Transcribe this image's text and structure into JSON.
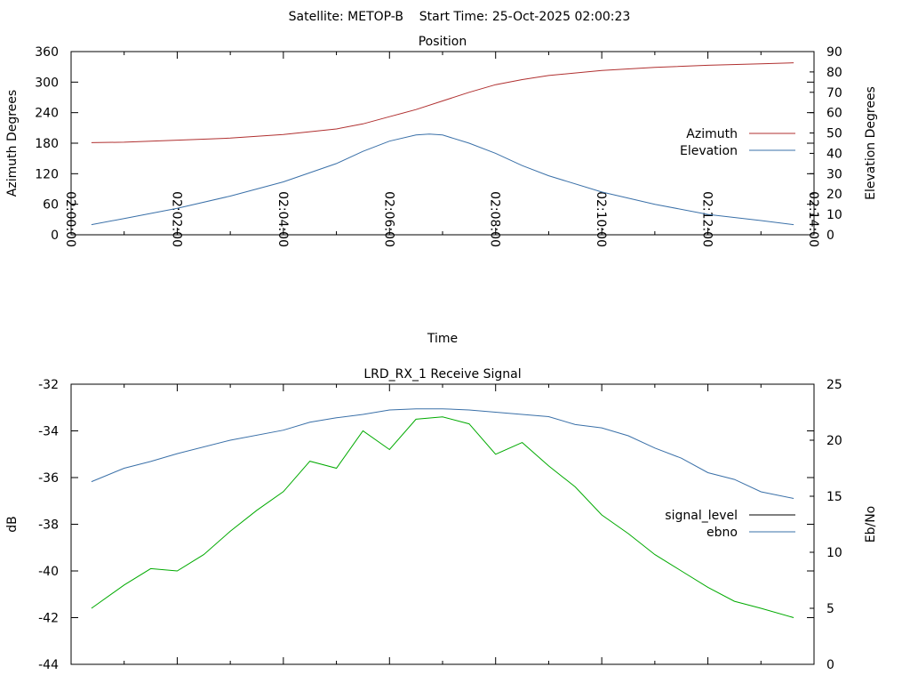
{
  "header": {
    "title": "Satellite: METOP-B    Start Time: 25-Oct-2025 02:00:23"
  },
  "chart_data": [
    {
      "type": "line",
      "title": "Position",
      "xlabel": "Time",
      "ylabel": "Azimuth Degrees",
      "y2label": "Elevation Degrees",
      "xlim": [
        "02:00:00",
        "02:14:00"
      ],
      "xticks": [
        "02:00:00",
        "02:02:00",
        "02:04:00",
        "02:06:00",
        "02:08:00",
        "02:10:00",
        "02:12:00",
        "02:14:00"
      ],
      "ylim": [
        0,
        360
      ],
      "yticks": [
        "0",
        "60",
        "120",
        "180",
        "240",
        "300",
        "360"
      ],
      "y2lim": [
        0,
        90
      ],
      "y2ticks": [
        "0",
        "10",
        "20",
        "30",
        "40",
        "50",
        "60",
        "70",
        "80",
        "90"
      ],
      "grid": false,
      "legend_position": "right",
      "series": [
        {
          "name": "Azimuth",
          "axis": "y",
          "color": "#b03030",
          "x": [
            "02:00:23",
            "02:01:00",
            "02:02:00",
            "02:03:00",
            "02:04:00",
            "02:05:00",
            "02:05:30",
            "02:06:00",
            "02:06:30",
            "02:07:00",
            "02:07:30",
            "02:08:00",
            "02:08:30",
            "02:09:00",
            "02:10:00",
            "02:11:00",
            "02:12:00",
            "02:13:00",
            "02:13:37"
          ],
          "values": [
            181,
            182,
            186,
            190,
            197,
            208,
            218,
            232,
            246,
            263,
            280,
            295,
            305,
            313,
            323,
            329,
            333,
            336,
            338
          ]
        },
        {
          "name": "Elevation",
          "axis": "y2",
          "color": "#3a70a8",
          "x": [
            "02:00:23",
            "02:01:00",
            "02:02:00",
            "02:03:00",
            "02:04:00",
            "02:05:00",
            "02:05:30",
            "02:06:00",
            "02:06:30",
            "02:06:45",
            "02:07:00",
            "02:07:30",
            "02:08:00",
            "02:08:30",
            "02:09:00",
            "02:10:00",
            "02:11:00",
            "02:12:00",
            "02:13:00",
            "02:13:37"
          ],
          "values": [
            5,
            8,
            13,
            19,
            26,
            35,
            41,
            46,
            49,
            49.5,
            49,
            45,
            40,
            34,
            29,
            21,
            15,
            10,
            7,
            5
          ]
        }
      ]
    },
    {
      "type": "line",
      "title": "LRD_RX_1 Receive Signal",
      "xlabel": "",
      "ylabel": "dB",
      "y2label": "Eb/No",
      "xlim": [
        "02:00:00",
        "02:14:00"
      ],
      "ylim": [
        -44,
        -32
      ],
      "yticks": [
        "-32",
        "-34",
        "-36",
        "-38",
        "-40",
        "-42",
        "-44"
      ],
      "y2lim": [
        0,
        25
      ],
      "y2ticks": [
        "25",
        "20",
        "15",
        "10",
        "5",
        "0"
      ],
      "grid": false,
      "legend_position": "right",
      "series": [
        {
          "name": "signal_level",
          "axis": "y",
          "color": "#000000",
          "x": [],
          "values": []
        },
        {
          "name": "ebno",
          "axis": "y2",
          "color": "#3a70a8",
          "x": [
            "02:00:23",
            "02:01:00",
            "02:01:30",
            "02:02:00",
            "02:03:00",
            "02:04:00",
            "02:04:30",
            "02:05:00",
            "02:05:30",
            "02:06:00",
            "02:06:30",
            "02:07:00",
            "02:07:30",
            "02:08:00",
            "02:08:30",
            "02:09:00",
            "02:09:30",
            "02:10:00",
            "02:10:30",
            "02:11:00",
            "02:11:30",
            "02:12:00",
            "02:12:30",
            "02:13:00",
            "02:13:37"
          ],
          "values": [
            16.3,
            17.5,
            18.1,
            18.8,
            20.0,
            20.9,
            21.6,
            22.0,
            22.3,
            22.7,
            22.8,
            22.8,
            22.7,
            22.5,
            22.3,
            22.1,
            21.4,
            21.1,
            20.4,
            19.3,
            18.4,
            17.1,
            16.5,
            15.4,
            14.8
          ]
        },
        {
          "name": "",
          "axis": "y",
          "color": "#00aa00",
          "x": [
            "02:00:23",
            "02:01:00",
            "02:01:30",
            "02:02:00",
            "02:02:30",
            "02:03:00",
            "02:03:30",
            "02:04:00",
            "02:04:30",
            "02:05:00",
            "02:05:30",
            "02:06:00",
            "02:06:30",
            "02:07:00",
            "02:07:30",
            "02:08:00",
            "02:08:30",
            "02:09:00",
            "02:09:30",
            "02:10:00",
            "02:10:30",
            "02:11:00",
            "02:11:30",
            "02:12:00",
            "02:12:30",
            "02:13:00",
            "02:13:37"
          ],
          "values": [
            -41.6,
            -40.6,
            -39.9,
            -40.0,
            -39.3,
            -38.3,
            -37.4,
            -36.6,
            -35.3,
            -35.6,
            -34.0,
            -34.8,
            -33.5,
            -33.4,
            -33.7,
            -35.0,
            -34.5,
            -35.5,
            -36.4,
            -37.6,
            -38.4,
            -39.3,
            -40.0,
            -40.7,
            -41.3,
            -41.6,
            -42.0
          ]
        }
      ]
    }
  ]
}
